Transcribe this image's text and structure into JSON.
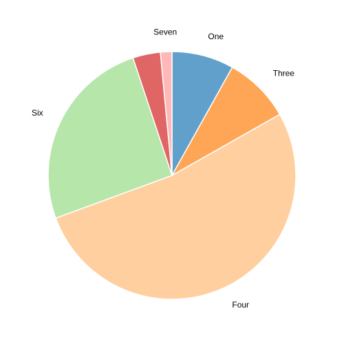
{
  "chart_data": {
    "type": "pie",
    "title": "",
    "slices": [
      {
        "label": "One",
        "value": 8.1,
        "color": "#62a0cc"
      },
      {
        "label": "Three",
        "value": 8.7,
        "color": "#ffa656"
      },
      {
        "label": "Four",
        "value": 52.6,
        "color": "#ffcf9f"
      },
      {
        "label": "Six",
        "value": 25.5,
        "color": "#b6e6aa"
      },
      {
        "label": "",
        "value": 3.6,
        "color": "#e06666"
      },
      {
        "label": "Seven",
        "value": 1.5,
        "color": "#ffb8b8"
      }
    ],
    "start_direction": "top",
    "rotation": "clockwise",
    "legend": "none"
  }
}
